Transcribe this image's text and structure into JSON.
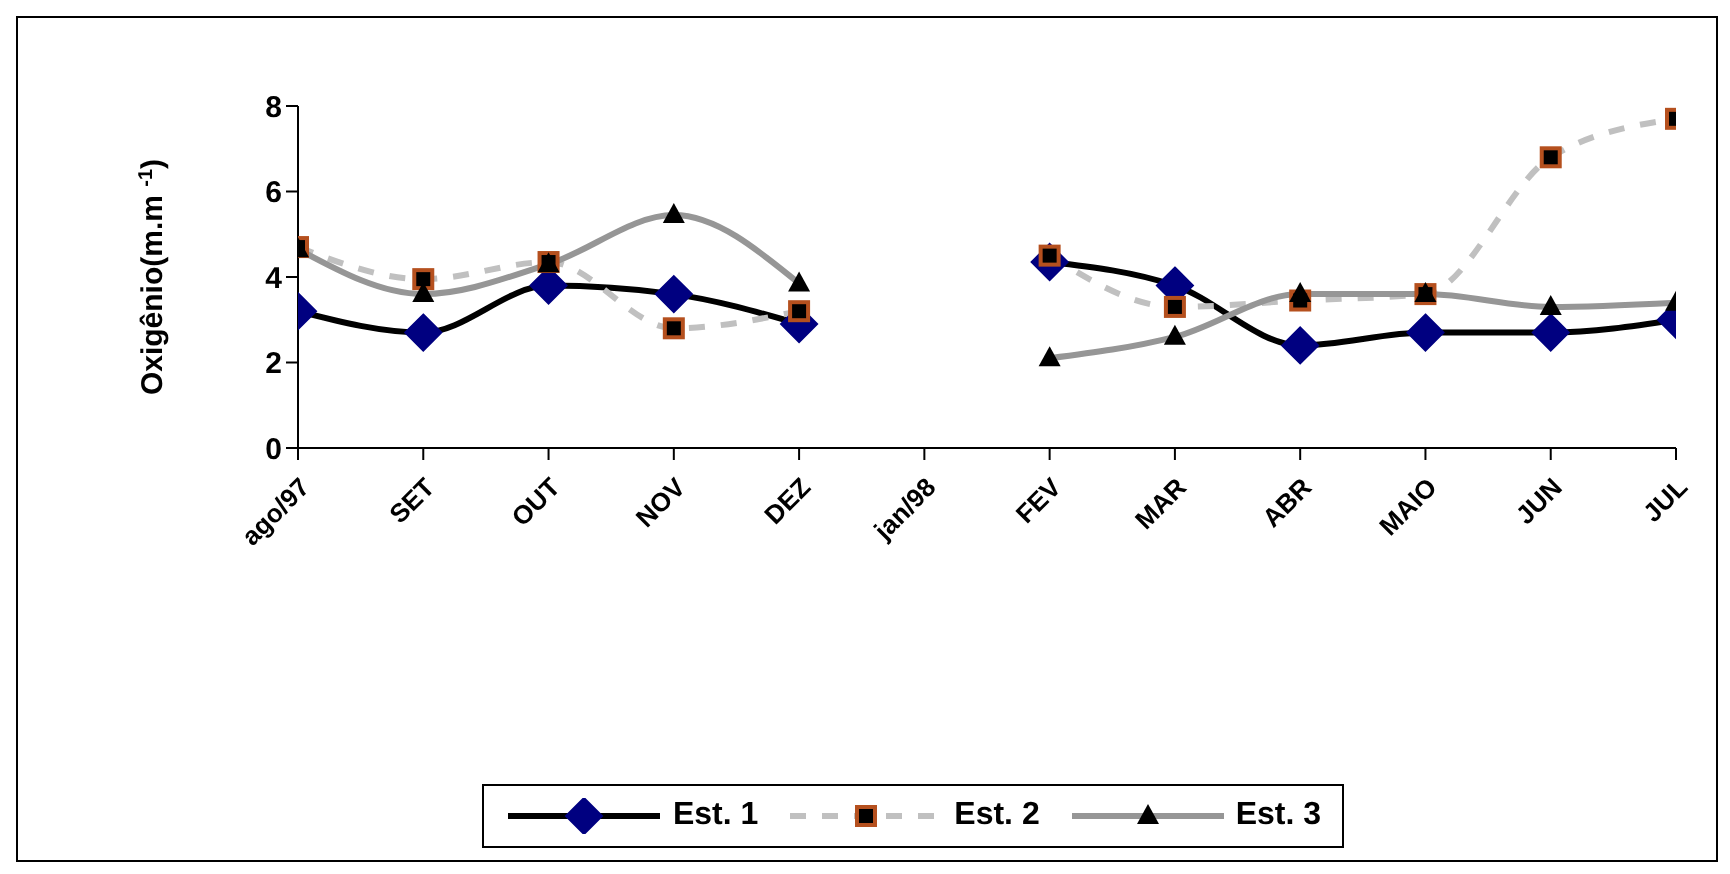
{
  "chart_data": {
    "type": "line",
    "ylabel": "Oxigênio(m.m $^{-1}$)",
    "categories": [
      "ago/97",
      "SET",
      "OUT",
      "NOV",
      "DEZ",
      "jan/98",
      "FEV",
      "MAR",
      "ABR",
      "MAIO",
      "JUN",
      "JUL"
    ],
    "series": [
      {
        "name": "Est. 1",
        "color": "#000000",
        "marker": "diamond",
        "line_style": "solid",
        "values": [
          3.2,
          2.7,
          3.8,
          3.6,
          2.9,
          null,
          4.35,
          3.8,
          2.4,
          2.7,
          2.7,
          3.0
        ]
      },
      {
        "name": "Est. 2",
        "color": "#c0c0c0",
        "marker": "square",
        "line_style": "dashed",
        "values": [
          4.7,
          3.95,
          4.35,
          2.8,
          3.2,
          null,
          4.5,
          3.3,
          3.45,
          3.6,
          6.8,
          7.7
        ]
      },
      {
        "name": "Est. 3",
        "color": "#969696",
        "marker": "triangle",
        "line_style": "solid",
        "values": [
          4.65,
          3.6,
          4.3,
          5.45,
          3.85,
          null,
          2.1,
          2.6,
          3.6,
          3.6,
          3.3,
          3.4
        ]
      }
    ],
    "ylim": [
      0,
      8
    ],
    "yticks": [
      0,
      2,
      4,
      6,
      8
    ],
    "grid": false,
    "legend": "bottom"
  }
}
